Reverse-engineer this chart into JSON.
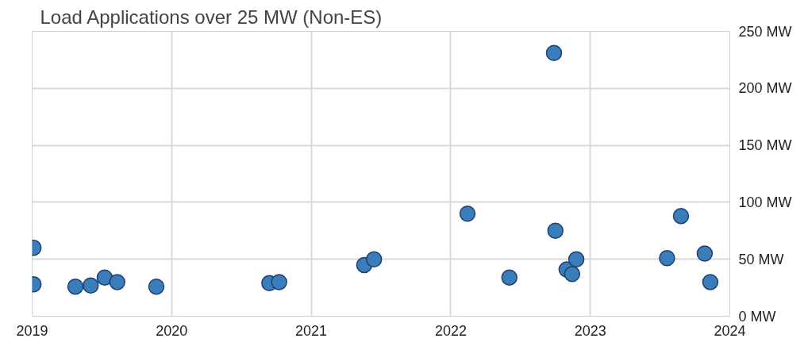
{
  "chart_data": {
    "type": "scatter",
    "title": "Load Applications over 25 MW (Non-ES)",
    "x": [
      2019.01,
      2019.01,
      2019.31,
      2019.42,
      2019.52,
      2019.61,
      2019.89,
      2020.7,
      2020.77,
      2021.38,
      2021.45,
      2022.12,
      2022.42,
      2022.74,
      2022.75,
      2022.83,
      2022.87,
      2022.9,
      2023.55,
      2023.65,
      2023.82,
      2023.86
    ],
    "series": [
      {
        "color": "#3a7dbb",
        "values": [
          60,
          28,
          26,
          27,
          34,
          30,
          26,
          29,
          30,
          45,
          50,
          90,
          34,
          231,
          75,
          41,
          37,
          50,
          51,
          88,
          55,
          30
        ]
      }
    ],
    "xlim": [
      2019,
      2024
    ],
    "xticks": [
      2019,
      2020,
      2021,
      2022,
      2023,
      2024
    ],
    "ylim": [
      0,
      250
    ],
    "yticks": [
      {
        "value": 0,
        "label": "0 MW"
      },
      {
        "value": 50,
        "label": "50 MW"
      },
      {
        "value": 100,
        "label": "100 MW"
      },
      {
        "value": 150,
        "label": "150 MW"
      },
      {
        "value": 200,
        "label": "200 MW"
      },
      {
        "value": 250,
        "label": "250 MW"
      }
    ],
    "grid": true,
    "marker": "circle"
  }
}
